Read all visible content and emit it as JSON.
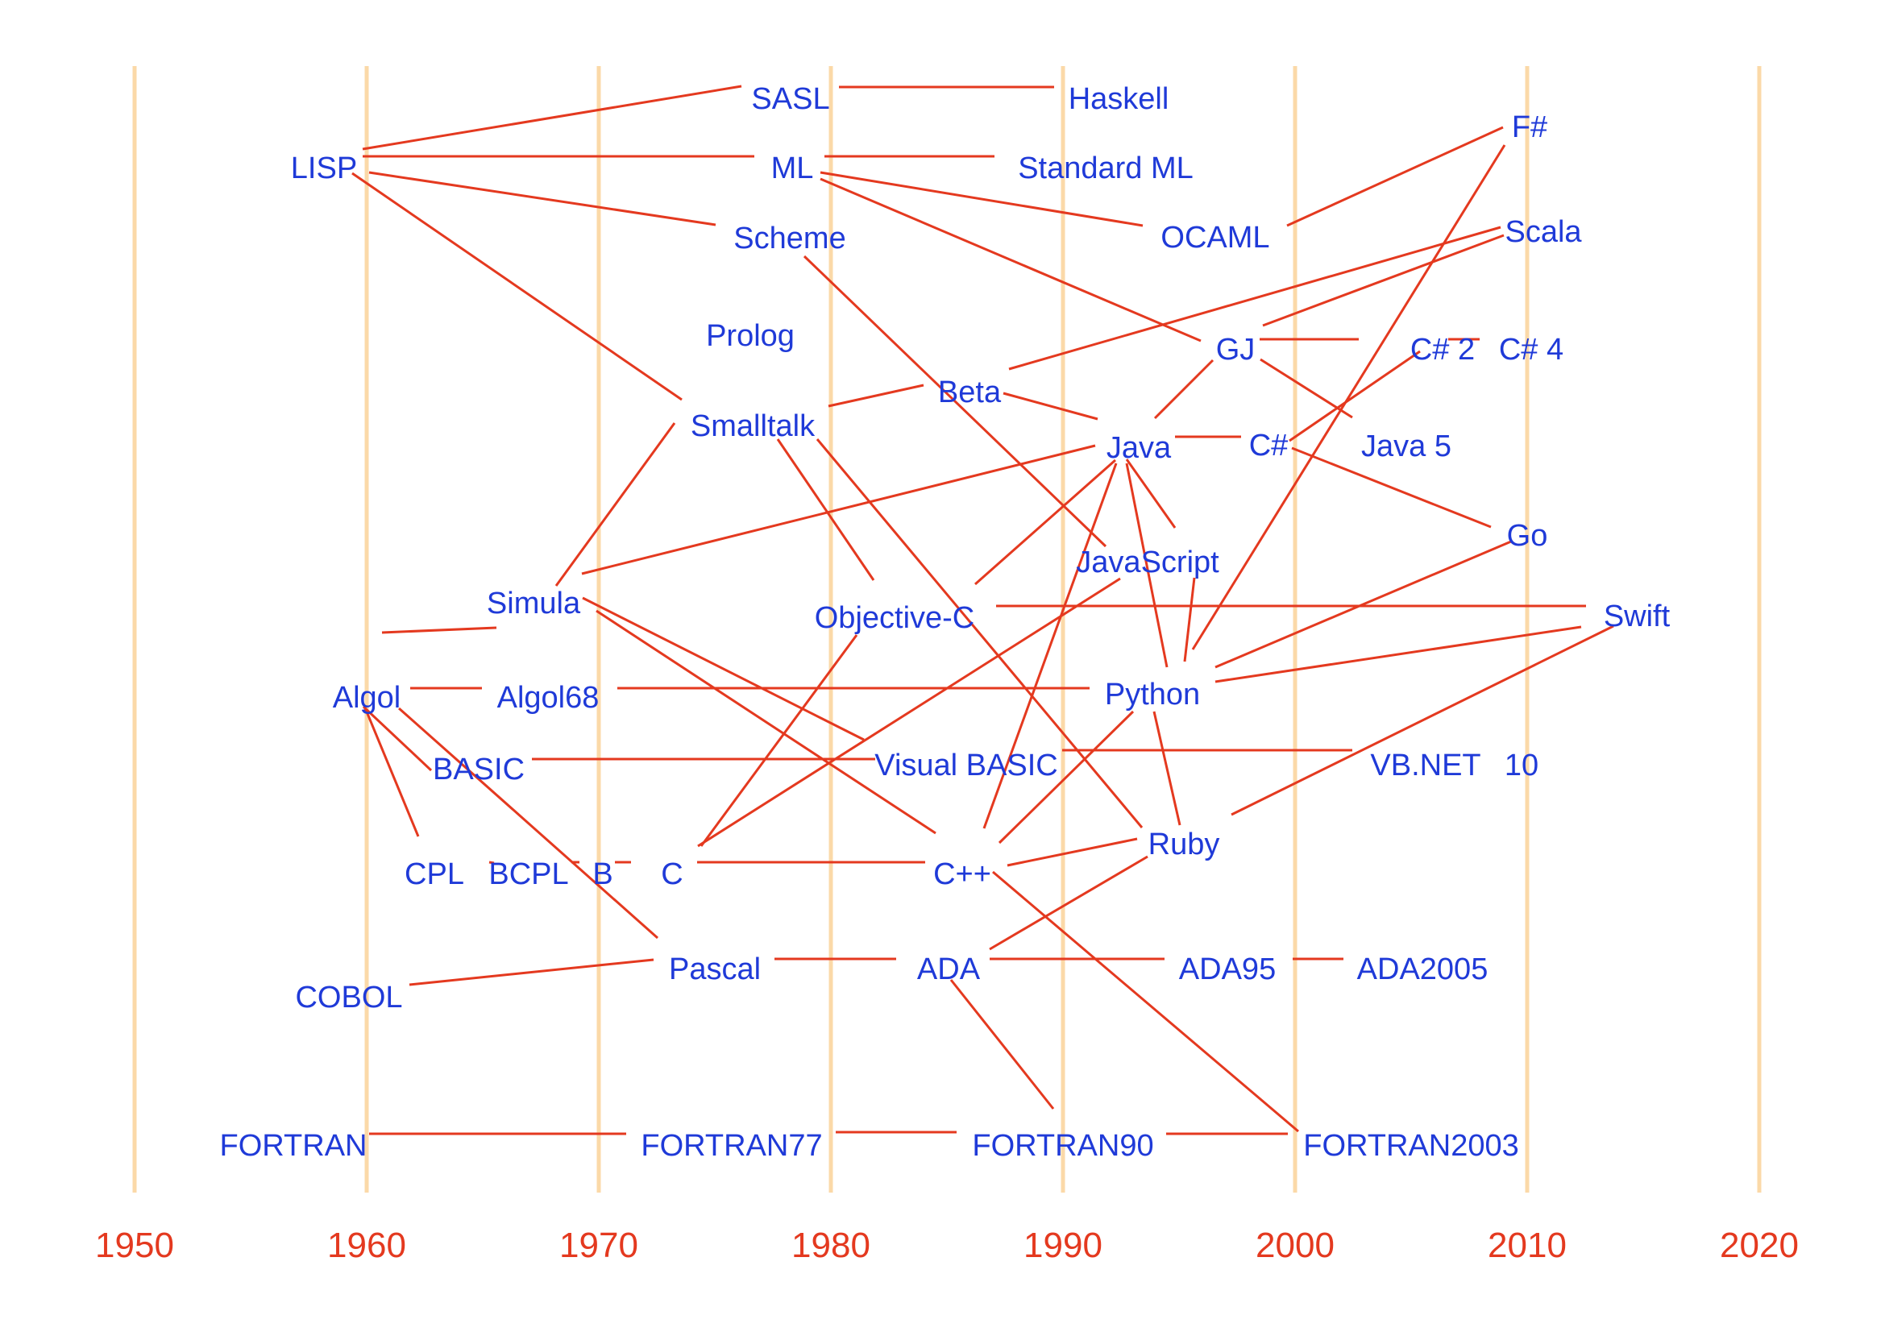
{
  "colors": {
    "gridline": "#fbd9a8",
    "edge": "#e4391f",
    "node_text": "#1f3ad8",
    "year_text": "#e4391f"
  },
  "years": [
    "1950",
    "1960",
    "1970",
    "1980",
    "1990",
    "2000",
    "2010",
    "2020"
  ],
  "nodes": {
    "SASL": "SASL",
    "Haskell": "Haskell",
    "FSharp": "F#",
    "LISP": "LISP",
    "ML": "ML",
    "StandardML": "Standard ML",
    "Scheme": "Scheme",
    "OCAML": "OCAML",
    "Scala": "Scala",
    "Prolog": "Prolog",
    "GJ": "GJ",
    "CSharp2": "C# 2",
    "CSharp4": "C# 4",
    "Beta": "Beta",
    "Smalltalk": "Smalltalk",
    "Java": "Java",
    "CSharp": "C#",
    "Java5": "Java 5",
    "Go": "Go",
    "JavaScript": "JavaScript",
    "Simula": "Simula",
    "ObjectiveC": "Objective-C",
    "Swift": "Swift",
    "Algol": "Algol",
    "Algol68": "Algol68",
    "Python": "Python",
    "BASIC": "BASIC",
    "VisualBASIC": "Visual BASIC",
    "VBNET": "VB.NET",
    "VB10": "10",
    "Ruby": "Ruby",
    "CPL": "CPL",
    "BCPL": "BCPL",
    "B": "B",
    "C": "C",
    "Cpp": "C++",
    "Pascal": "Pascal",
    "ADA": "ADA",
    "ADA95": "ADA95",
    "ADA2005": "ADA2005",
    "COBOL": "COBOL",
    "FORTRAN": "FORTRAN",
    "FORTRAN77": "FORTRAN77",
    "FORTRAN90": "FORTRAN90",
    "FORTRAN2003": "FORTRAN2003"
  },
  "edges": [
    [
      "LISP",
      "SASL"
    ],
    [
      "SASL",
      "Haskell"
    ],
    [
      "LISP",
      "ML"
    ],
    [
      "ML",
      "StandardML"
    ],
    [
      "LISP",
      "Scheme"
    ],
    [
      "LISP",
      "Smalltalk"
    ],
    [
      "ML",
      "OCAML"
    ],
    [
      "ML",
      "GJ"
    ],
    [
      "OCAML",
      "FSharp"
    ],
    [
      "FSharp",
      "Python"
    ],
    [
      "Scala",
      "Beta"
    ],
    [
      "Scala",
      "GJ"
    ],
    [
      "GJ",
      "CSharp2"
    ],
    [
      "CSharp2",
      "CSharp4"
    ],
    [
      "GJ",
      "Java5"
    ],
    [
      "GJ",
      "Java"
    ],
    [
      "CSharp2",
      "CSharp"
    ],
    [
      "Smalltalk",
      "Beta"
    ],
    [
      "Beta",
      "Java"
    ],
    [
      "Java",
      "CSharp"
    ],
    [
      "CSharp",
      "Go"
    ],
    [
      "Scheme",
      "JavaScript"
    ],
    [
      "Smalltalk",
      "ObjectiveC"
    ],
    [
      "Smalltalk",
      "Ruby"
    ],
    [
      "Simula",
      "Smalltalk"
    ],
    [
      "Simula",
      "Java"
    ],
    [
      "Simula",
      "VisualBASIC"
    ],
    [
      "Simula",
      "Cpp"
    ],
    [
      "Java",
      "ObjectiveC"
    ],
    [
      "Java",
      "JavaScript"
    ],
    [
      "Java",
      "Python"
    ],
    [
      "Java",
      "Cpp"
    ],
    [
      "JavaScript",
      "Python"
    ],
    [
      "JavaScript",
      "C"
    ],
    [
      "ObjectiveC",
      "Swift"
    ],
    [
      "ObjectiveC",
      "C"
    ],
    [
      "Python",
      "Swift"
    ],
    [
      "Python",
      "Go"
    ],
    [
      "Ruby",
      "Swift"
    ],
    [
      "Python",
      "Ruby"
    ],
    [
      "Python",
      "Cpp"
    ],
    [
      "Algol",
      "Simula"
    ],
    [
      "Algol",
      "Algol68"
    ],
    [
      "Algol68",
      "Python"
    ],
    [
      "Algol",
      "BASIC"
    ],
    [
      "Algol",
      "CPL"
    ],
    [
      "Algol",
      "Pascal"
    ],
    [
      "BASIC",
      "VisualBASIC"
    ],
    [
      "VisualBASIC",
      "VBNET"
    ],
    [
      "CPL",
      "BCPL"
    ],
    [
      "BCPL",
      "B"
    ],
    [
      "B",
      "C"
    ],
    [
      "C",
      "Cpp"
    ],
    [
      "Cpp",
      "Ruby"
    ],
    [
      "Cpp",
      "FORTRAN2003"
    ],
    [
      "COBOL",
      "Pascal"
    ],
    [
      "Pascal",
      "ADA"
    ],
    [
      "ADA",
      "ADA95"
    ],
    [
      "ADA95",
      "ADA2005"
    ],
    [
      "ADA",
      "Ruby"
    ],
    [
      "ADA",
      "FORTRAN90"
    ],
    [
      "FORTRAN",
      "FORTRAN77"
    ],
    [
      "FORTRAN77",
      "FORTRAN90"
    ],
    [
      "FORTRAN90",
      "FORTRAN2003"
    ]
  ]
}
